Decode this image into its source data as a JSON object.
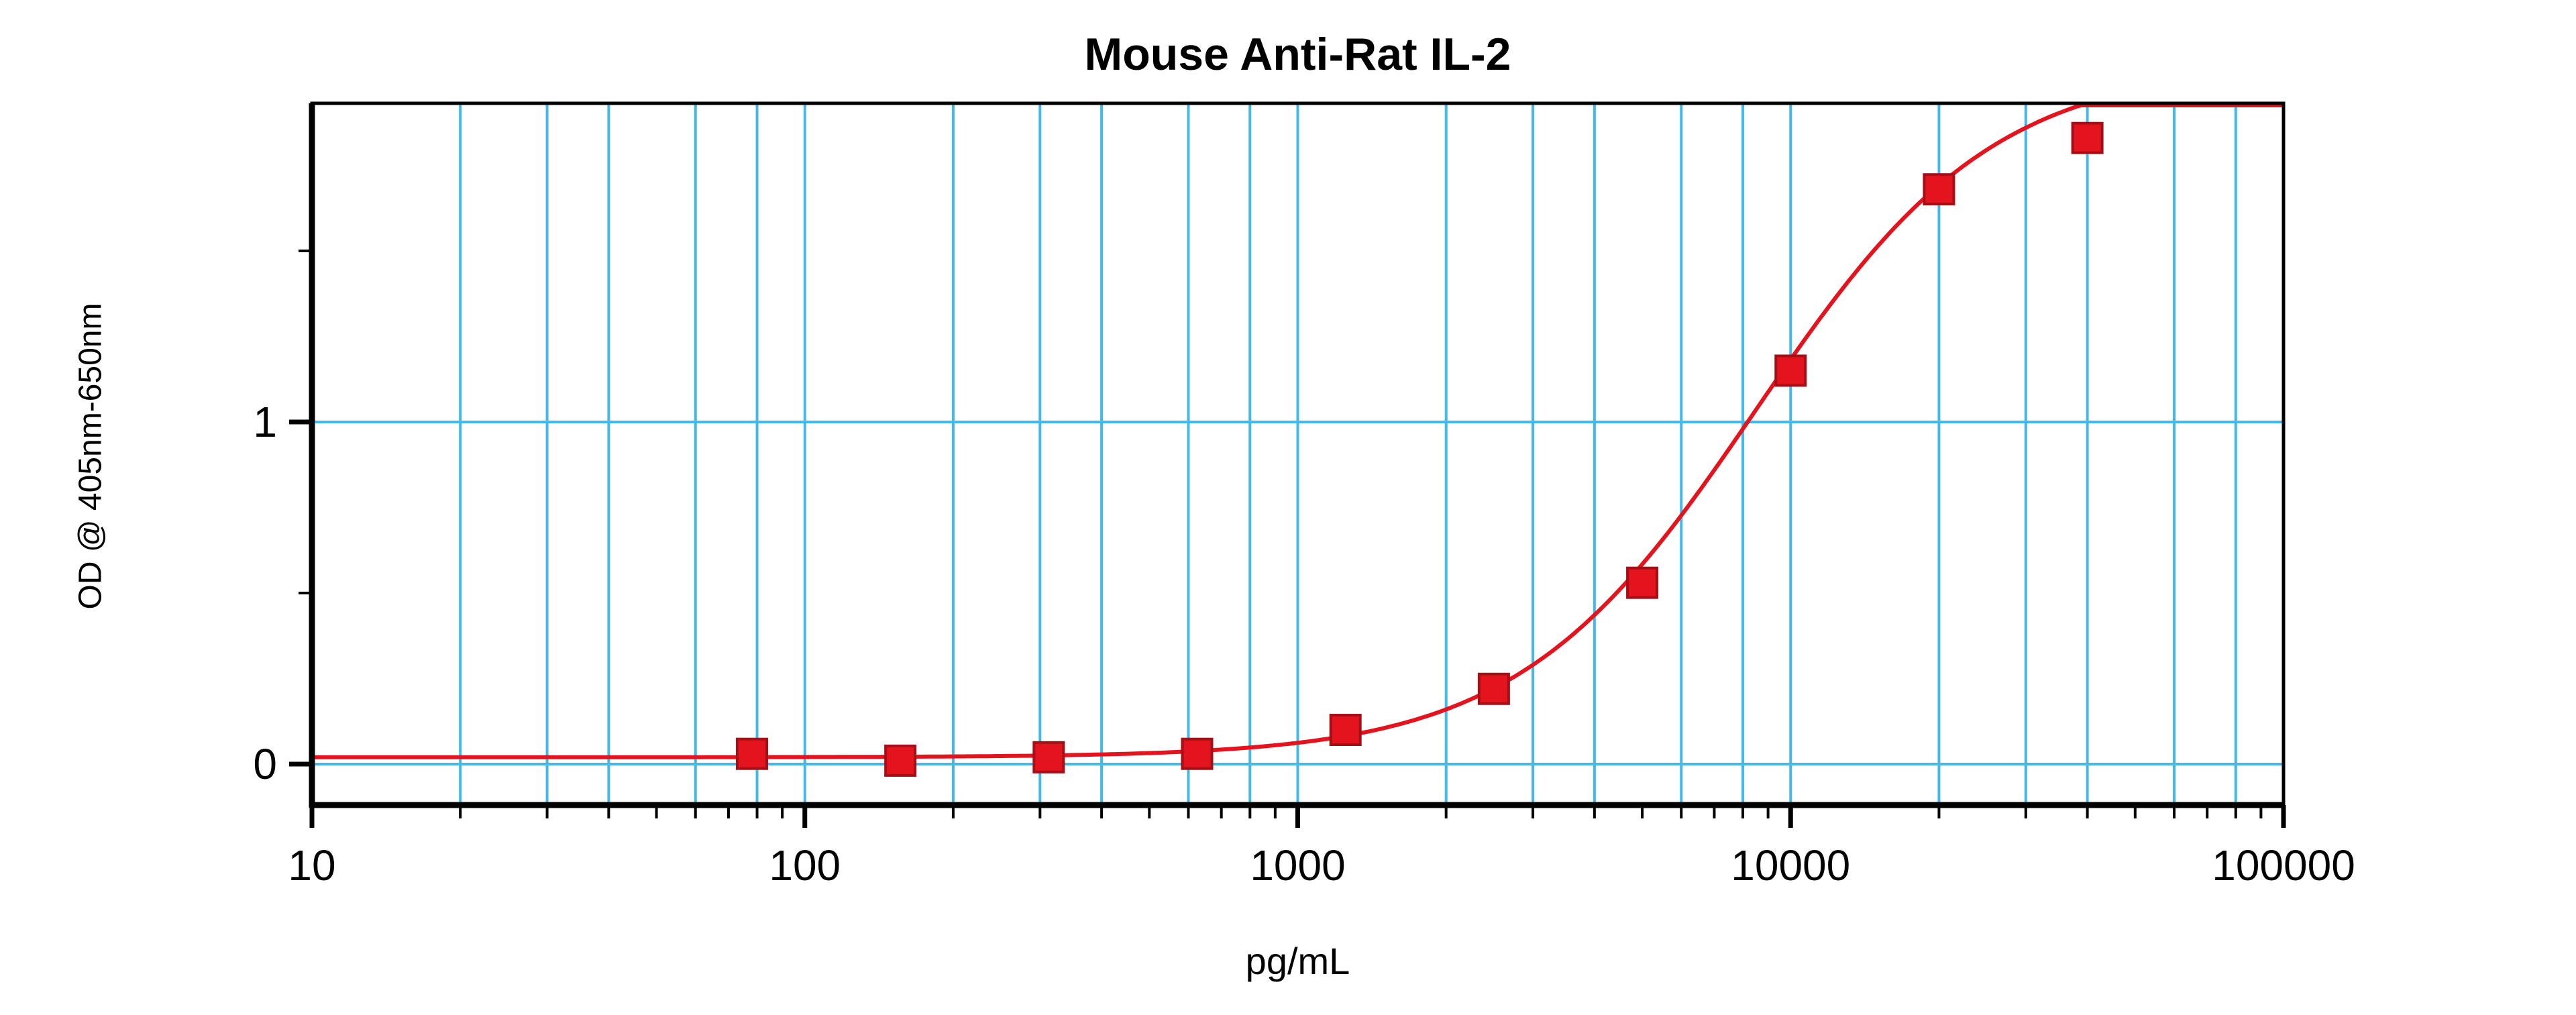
{
  "chart_data": {
    "type": "scatter",
    "title": "Mouse Anti-Rat IL-2",
    "xlabel": "pg/mL",
    "ylabel": "OD @ 405nm-650nm",
    "x_scale": "log",
    "xlim": [
      10,
      100000
    ],
    "ylim": [
      0,
      1.93
    ],
    "x_ticks": [
      10,
      100,
      1000,
      10000,
      100000
    ],
    "x_tick_labels": [
      "10",
      "100",
      "1000",
      "10000",
      "100000"
    ],
    "y_ticks": [
      0,
      1
    ],
    "y_tick_labels": [
      "0",
      "1"
    ],
    "y_minor_ticks": [
      0.5,
      1.5
    ],
    "y_gridlines": [
      0,
      1
    ],
    "x_minor_gridlines": [
      2,
      3,
      4,
      6,
      8
    ],
    "x_minor_ticks": [
      2,
      3,
      4,
      5,
      6,
      7,
      8,
      9
    ],
    "grid_on": true,
    "grid_color": "#44B8E8",
    "frame_color": "#000000",
    "curve_color": "#E3141E",
    "marker_color": "#E3141E",
    "marker_edge_color": "#A50F15",
    "marker_shape": "square",
    "points": [
      {
        "x": 78.125,
        "y": 0.03
      },
      {
        "x": 156.25,
        "y": 0.01
      },
      {
        "x": 312.5,
        "y": 0.02
      },
      {
        "x": 625,
        "y": 0.03
      },
      {
        "x": 1250,
        "y": 0.1
      },
      {
        "x": 2500,
        "y": 0.22
      },
      {
        "x": 5000,
        "y": 0.53
      },
      {
        "x": 10000,
        "y": 1.15
      },
      {
        "x": 20000,
        "y": 1.68
      },
      {
        "x": 40000,
        "y": 1.83
      }
    ],
    "fit": {
      "model": "4PL",
      "bottom": 0.02,
      "top": 2.05,
      "ec50": 8500,
      "hill": 1.8
    }
  }
}
